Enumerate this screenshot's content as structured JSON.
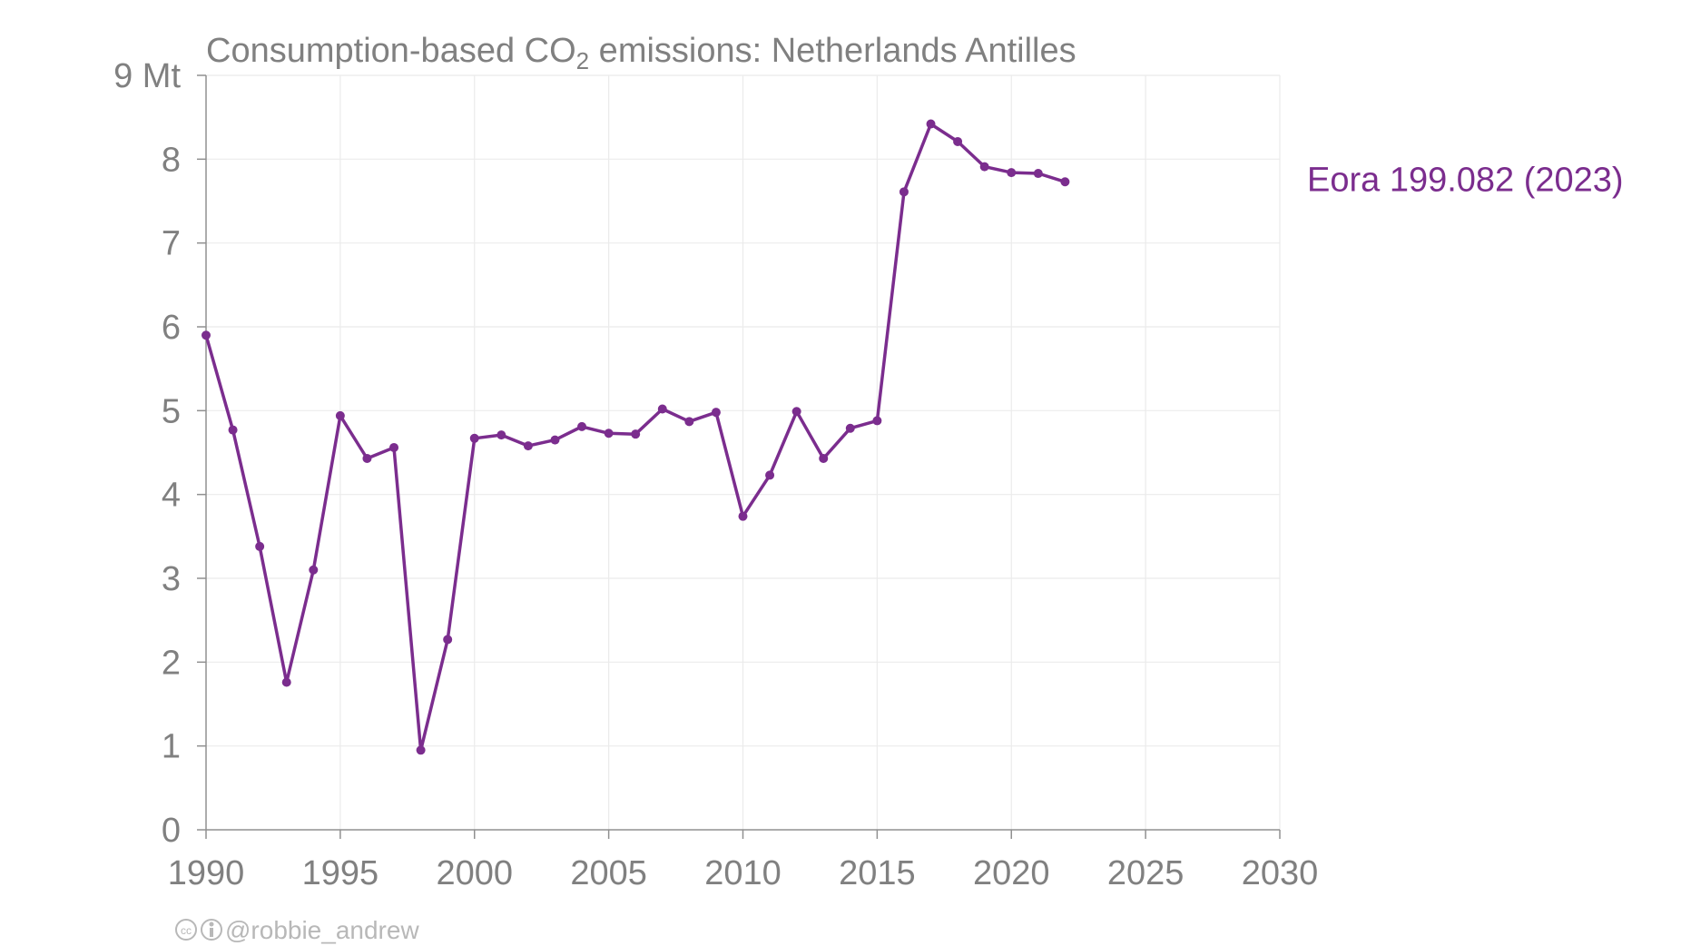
{
  "chart_data": {
    "type": "line",
    "title_prefix": "Consumption-based CO",
    "title_subscript": "2",
    "title_suffix": " emissions: Netherlands Antilles",
    "y_unit": "Mt",
    "xlim": [
      1990,
      2030
    ],
    "ylim": [
      0,
      9
    ],
    "x_ticks": [
      1990,
      1995,
      2000,
      2005,
      2010,
      2015,
      2020,
      2025,
      2030
    ],
    "y_ticks": [
      0,
      1,
      2,
      3,
      4,
      5,
      6,
      7,
      8,
      9
    ],
    "grid": true,
    "series": [
      {
        "name": "Eora 199.082 (2023)",
        "color": "#7b2d8e",
        "x": [
          1990,
          1991,
          1992,
          1993,
          1994,
          1995,
          1996,
          1997,
          1998,
          1999,
          2000,
          2001,
          2002,
          2003,
          2004,
          2005,
          2006,
          2007,
          2008,
          2009,
          2010,
          2011,
          2012,
          2013,
          2014,
          2015,
          2016,
          2017,
          2018,
          2019,
          2020,
          2021,
          2022
        ],
        "y": [
          5.9,
          4.77,
          3.38,
          1.76,
          3.1,
          4.94,
          4.43,
          4.56,
          0.95,
          2.27,
          4.67,
          4.71,
          4.58,
          4.65,
          4.81,
          4.73,
          4.72,
          5.02,
          4.87,
          4.98,
          3.74,
          4.23,
          4.99,
          4.43,
          4.79,
          4.88,
          7.61,
          8.42,
          8.21,
          7.91,
          7.84,
          7.83,
          7.73
        ]
      }
    ]
  },
  "credit": {
    "icons": [
      "creative-commons-icon",
      "attribution-icon"
    ],
    "text": "@robbie_andrew"
  }
}
